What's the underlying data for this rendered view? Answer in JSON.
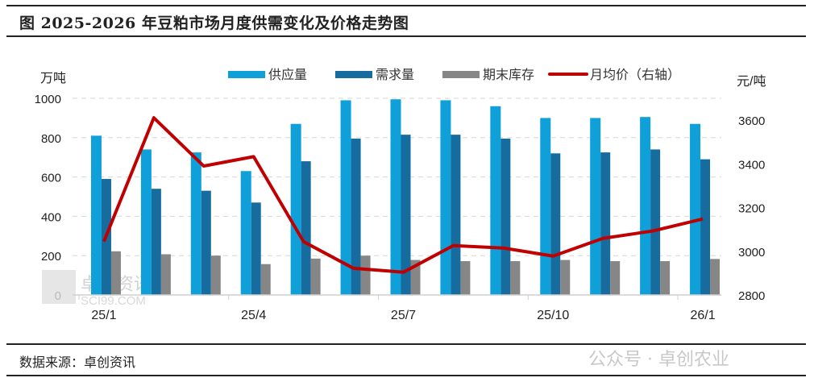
{
  "header": {
    "title": "图  2025-2026 年豆粕市场月度供需变化及价格走势图"
  },
  "footer": {
    "source": "数据来源：卓创资讯",
    "watermark": "公众号 · 卓创农业"
  },
  "plot_watermark": {
    "text": "卓创资讯",
    "sub": "SCI99.COM"
  },
  "chart_data": {
    "type": "bar+line",
    "title": "2025-2026 年豆粕市场月度供需变化及价格走势图",
    "categories": [
      "25/1",
      "25/2",
      "25/3",
      "25/4",
      "25/5",
      "25/6",
      "25/7",
      "25/8",
      "25/9",
      "25/10",
      "25/11",
      "25/12",
      "26/1"
    ],
    "tick_labels_shown": [
      "25/1",
      "25/4",
      "25/7",
      "25/10",
      "26/1"
    ],
    "ylabel_left": "万吨",
    "ylabel_right": "元/吨",
    "ylim_left": [
      0,
      1000
    ],
    "yticks_left": [
      0,
      200,
      400,
      600,
      800,
      1000
    ],
    "ylim_right": [
      2800,
      3700
    ],
    "yticks_right": [
      2800,
      3000,
      3200,
      3400,
      3600
    ],
    "grid": true,
    "legend_placement": "top",
    "series": [
      {
        "name": "供应量",
        "type": "bar",
        "axis": "left",
        "color": "#0fa0da",
        "values": [
          810,
          740,
          725,
          630,
          870,
          990,
          995,
          990,
          960,
          900,
          900,
          905,
          870
        ]
      },
      {
        "name": "需求量",
        "type": "bar",
        "axis": "left",
        "color": "#166c9e",
        "values": [
          590,
          540,
          530,
          470,
          680,
          795,
          815,
          815,
          795,
          720,
          725,
          740,
          690
        ]
      },
      {
        "name": "期末库存",
        "type": "bar",
        "axis": "left",
        "color": "#868686",
        "values": [
          222,
          207,
          200,
          157,
          185,
          200,
          178,
          172,
          172,
          178,
          172,
          172,
          183
        ]
      },
      {
        "name": "月均价（右轴）",
        "type": "line",
        "axis": "right",
        "color": "#c00000",
        "values": [
          3045,
          3611,
          3390,
          3433,
          3044,
          2922,
          2904,
          3026,
          3015,
          2978,
          3059,
          3093,
          3148
        ]
      }
    ]
  }
}
